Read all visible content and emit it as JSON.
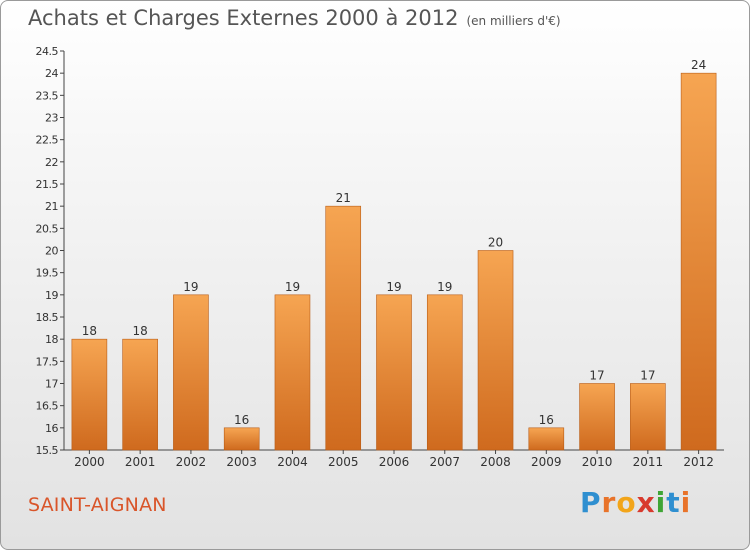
{
  "header": {
    "title": "Achats et Charges Externes 2000 à 2012",
    "unit": "(en milliers d'€)"
  },
  "footer": {
    "commune": "SAINT-AIGNAN",
    "logo_letters": [
      "P",
      "r",
      "o",
      "x",
      "i",
      "t",
      "i"
    ],
    "logo_colors": [
      "#2f8fd0",
      "#e8732a",
      "#f2a51a",
      "#d83a2e",
      "#3fa535",
      "#2f8fd0",
      "#e8732a"
    ]
  },
  "colors": {
    "bar_light": "#f6a552",
    "bar_dark": "#cf6a1e",
    "title": "#555555",
    "commune": "#d9552a"
  },
  "chart_data": {
    "type": "bar",
    "title": "Achats et Charges Externes 2000 à 2012",
    "subtitle": "(en milliers d'€)",
    "categories": [
      "2000",
      "2001",
      "2002",
      "2003",
      "2004",
      "2005",
      "2006",
      "2007",
      "2008",
      "2009",
      "2010",
      "2011",
      "2012"
    ],
    "values": [
      18,
      18,
      19,
      16,
      19,
      21,
      19,
      19,
      20,
      16,
      17,
      17,
      24
    ],
    "ylim": [
      15.5,
      24.5
    ],
    "yticks": [
      "15.5",
      "16",
      "16.5",
      "17",
      "17.5",
      "18",
      "18.5",
      "19",
      "19.5",
      "20",
      "20.5",
      "21",
      "21.5",
      "22",
      "22.5",
      "23",
      "23.5",
      "24",
      "24.5"
    ],
    "grid": false,
    "data_labels": [
      "18",
      "18",
      "19",
      "16",
      "19",
      "21",
      "19",
      "19",
      "20",
      "16",
      "17",
      "17",
      "24"
    ]
  }
}
